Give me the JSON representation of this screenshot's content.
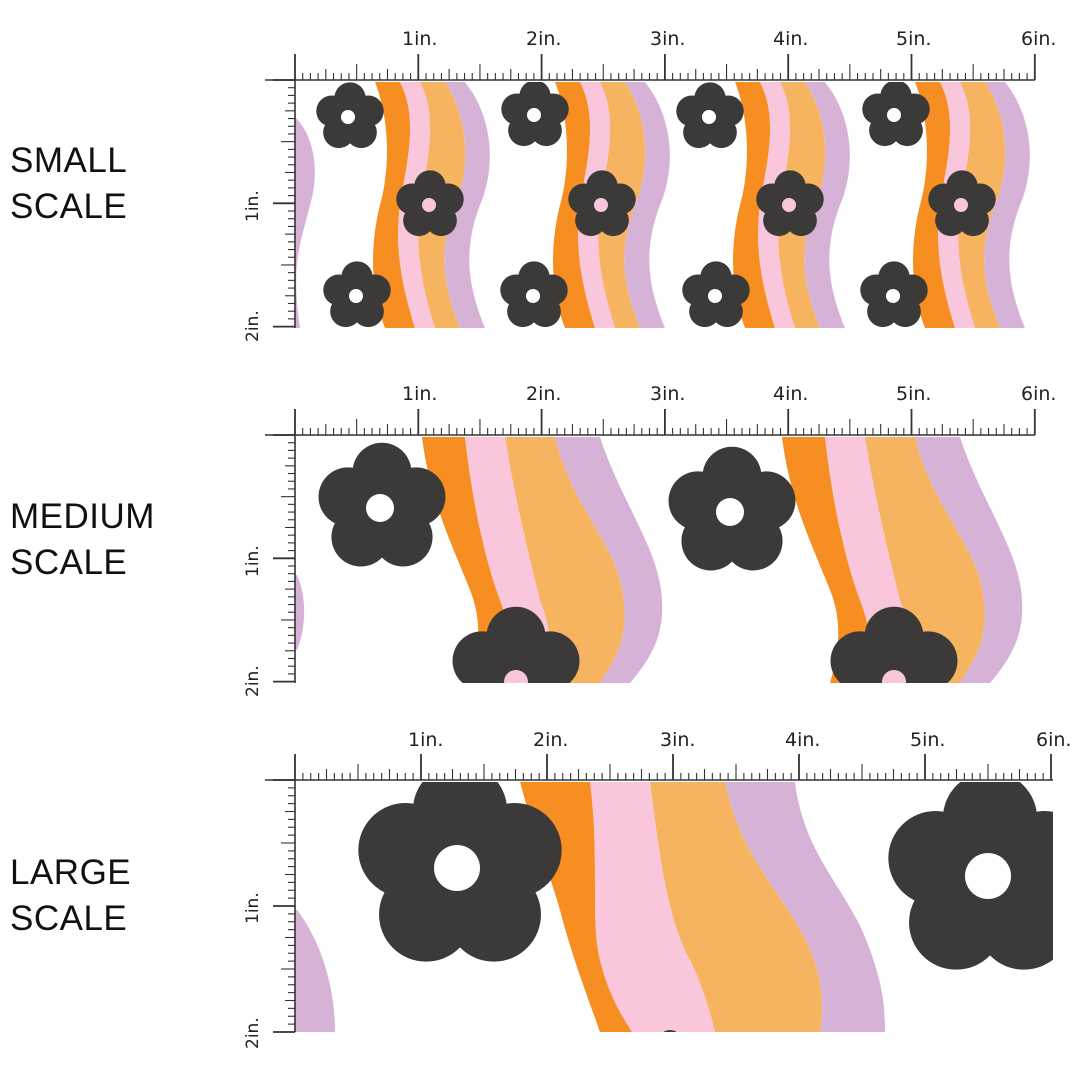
{
  "scales": [
    {
      "id": "small",
      "label_line1": "SMALL",
      "label_line2": "SCALE"
    },
    {
      "id": "medium",
      "label_line1": "MEDIUM",
      "label_line2": "SCALE"
    },
    {
      "id": "large",
      "label_line1": "LARGE",
      "label_line2": "SCALE"
    }
  ],
  "ruler": {
    "h_labels": [
      "1in.",
      "2in.",
      "3in.",
      "4in.",
      "5in.",
      "6in."
    ],
    "v_labels": [
      "1in.",
      "2in."
    ]
  },
  "colors": {
    "flower": "#3b3a38",
    "orange": "#f68e22",
    "pink": "#f9c6dc",
    "peach": "#f6b360",
    "lavender": "#d7b2d7",
    "ruler": "#333333"
  }
}
